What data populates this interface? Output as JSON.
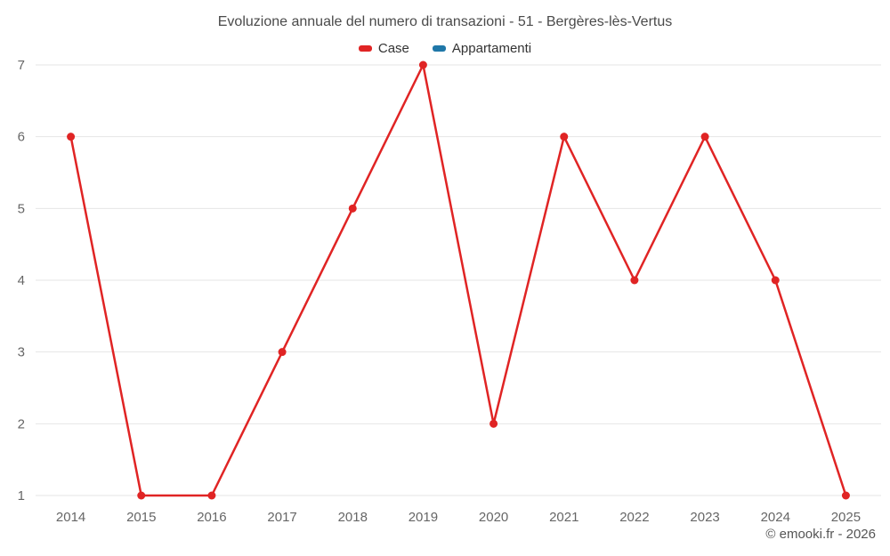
{
  "header": {
    "title": "Evoluzione annuale del numero di transazioni - 51 - Bergères-lès-Vertus",
    "copyright": "© emooki.fr - 2026"
  },
  "chart_data": {
    "type": "line",
    "title": "Evoluzione annuale del numero di transazioni - 51 - Bergères-lès-Vertus",
    "x": [
      "2014",
      "2015",
      "2016",
      "2017",
      "2018",
      "2019",
      "2020",
      "2021",
      "2022",
      "2023",
      "2024",
      "2025"
    ],
    "series": [
      {
        "name": "Case",
        "color": "#e02424",
        "values": [
          6,
          1,
          1,
          3,
          5,
          7,
          2,
          6,
          4,
          6,
          4,
          1
        ]
      },
      {
        "name": "Appartamenti",
        "color": "#1f77a8",
        "values": []
      }
    ],
    "xlabel": "",
    "ylabel": "",
    "ylim": [
      1,
      7
    ],
    "yticks": [
      1,
      2,
      3,
      4,
      5,
      6,
      7
    ],
    "grid": true,
    "grid_color": "#e6e6e6",
    "legend_position": "top",
    "marker_radius": 4.5,
    "line_width": 2.5
  }
}
